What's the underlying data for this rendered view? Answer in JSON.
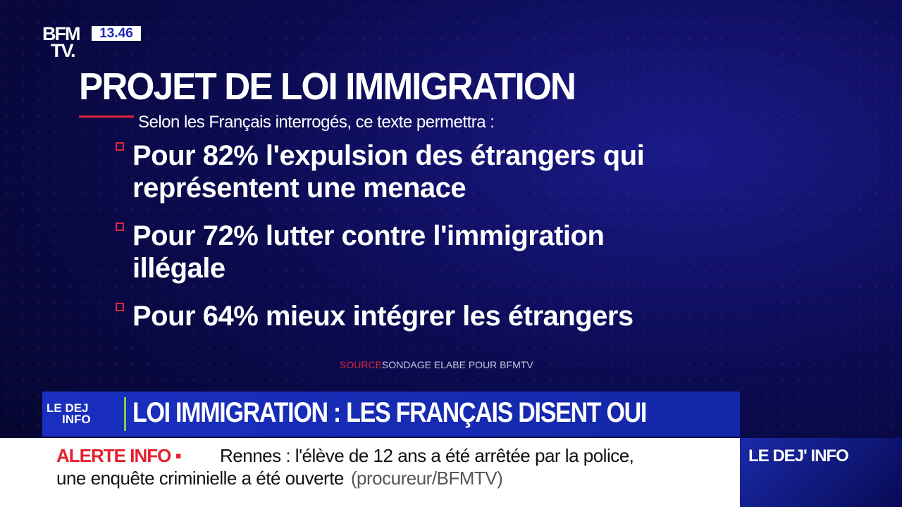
{
  "channel": {
    "logo_line1": "BFM",
    "logo_line2": "TV.",
    "time": "13.46"
  },
  "graphic": {
    "title": "PROJET DE LOI IMMIGRATION",
    "subtitle": "Selon les Français interrogés, ce texte permettra :",
    "items": [
      {
        "line1": "Pour 82% l'expulsion des étrangers qui",
        "line2": "représentent une menace"
      },
      {
        "line1": "Pour 72% lutter contre l'immigration",
        "line2": "illégale"
      },
      {
        "line1": "Pour 64% mieux intégrer les étrangers",
        "line2": ""
      }
    ],
    "source_label": "SOURCE",
    "source_text": "SONDAGE ELABE POUR BFMTV"
  },
  "lower_third": {
    "show_logo_line1": "LE DEJ",
    "show_logo_line2": "INFO",
    "headline": "LOI IMMIGRATION : LES FRANÇAIS DISENT OUI"
  },
  "ticker": {
    "label": "ALERTE INFO ▪",
    "line1": "Rennes : l'élève de 12 ans a été arrêtée par la police,",
    "line2": "une enquête criminielle a été ouverte",
    "source": "(procureur/BFMTV)"
  },
  "side_panel": {
    "label": "LE DEJ' INFO"
  },
  "colors": {
    "accent_red": "#d9283a",
    "brand_blue": "#1a2fc0",
    "alert_red": "#e3202e"
  }
}
